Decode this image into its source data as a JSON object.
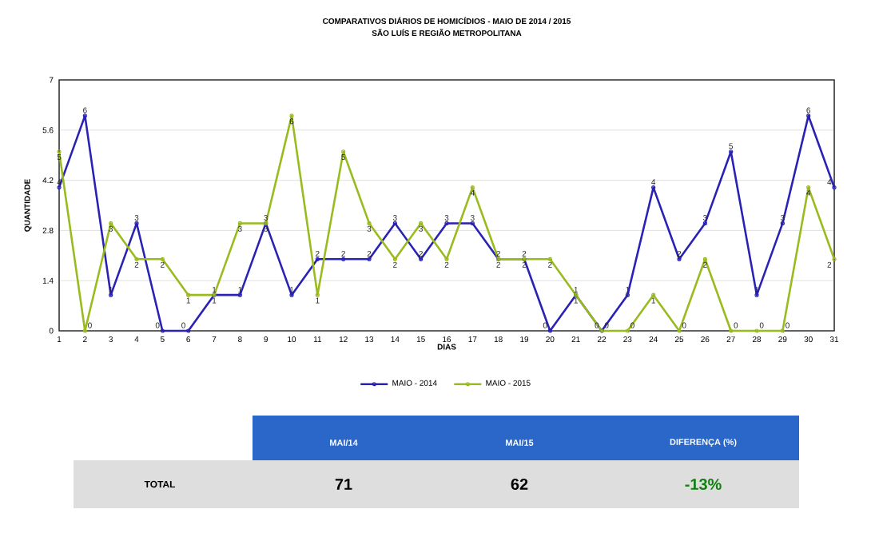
{
  "chart_data": [
    {
      "type": "line",
      "title": "COMPARATIVOS DIÁRIOS DE HOMICÍDIOS - MAIO DE 2014 / 2015",
      "subtitle": "SÃO LUÍS E REGIÃO METROPOLITANA",
      "xlabel": "DIAS",
      "ylabel": "QUANTIDADE",
      "categories": [
        "1",
        "2",
        "3",
        "4",
        "5",
        "6",
        "7",
        "8",
        "9",
        "10",
        "11",
        "12",
        "13",
        "14",
        "15",
        "16",
        "17",
        "18",
        "19",
        "20",
        "21",
        "22",
        "23",
        "24",
        "25",
        "26",
        "27",
        "28",
        "29",
        "30",
        "31"
      ],
      "series": [
        {
          "name": "MAIO - 2014",
          "color": "#2a22b4",
          "values": [
            4,
            6,
            1,
            3,
            0,
            0,
            1,
            1,
            3,
            1,
            2,
            2,
            2,
            3,
            2,
            3,
            3,
            2,
            2,
            0,
            1,
            0,
            1,
            4,
            2,
            3,
            5,
            1,
            3,
            6,
            4
          ]
        },
        {
          "name": "MAIO - 2015",
          "color": "#9abb1e",
          "values": [
            5,
            0,
            3,
            2,
            2,
            1,
            1,
            3,
            3,
            6,
            1,
            5,
            3,
            2,
            3,
            2,
            4,
            2,
            2,
            2,
            1,
            0,
            0,
            1,
            0,
            2,
            0,
            0,
            0,
            4,
            2
          ]
        }
      ],
      "ylim": [
        0,
        7
      ],
      "yticks": [
        0,
        1.4,
        2.8,
        4.2,
        5.6,
        7
      ],
      "grid": "y",
      "legend": "bottom",
      "marker": "circle",
      "data_labels": true
    },
    {
      "type": "other",
      "categories": [
        "MAI/14",
        "MAI/15",
        "DIFERENÇA (%)"
      ],
      "annotations": [
        "TOTAL",
        "71",
        "62",
        "-13%"
      ]
    }
  ]
}
